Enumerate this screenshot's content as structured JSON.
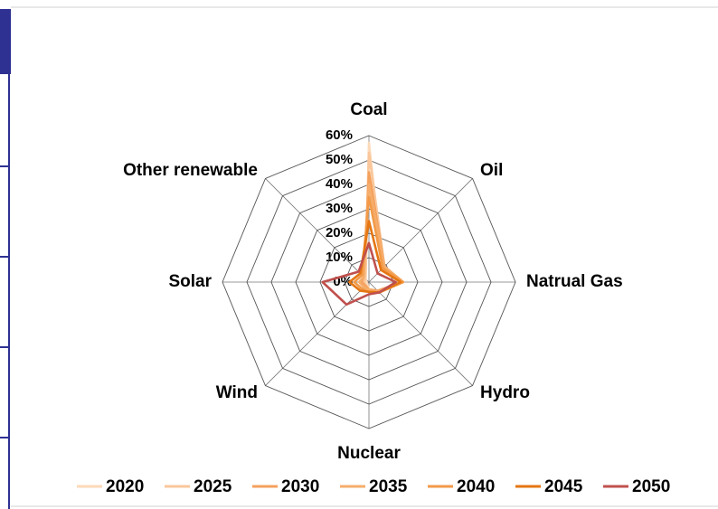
{
  "chart_data": {
    "type": "radar",
    "categories": [
      "Coal",
      "Oil",
      "Natrual Gas",
      "Hydro",
      "Nuclear",
      "Wind",
      "Solar",
      "Other renewable"
    ],
    "series": [
      {
        "name": "2020",
        "color": "#fcd9b8",
        "values": [
          57,
          8,
          13,
          5,
          3,
          1,
          1,
          2
        ]
      },
      {
        "name": "2025",
        "color": "#f9c79b",
        "values": [
          53,
          9,
          14,
          5,
          3,
          2,
          2,
          2
        ]
      },
      {
        "name": "2030",
        "color": "#f4a15d",
        "values": [
          45,
          9,
          14,
          5,
          3,
          2,
          3,
          3
        ]
      },
      {
        "name": "2035",
        "color": "#f6ad6b",
        "values": [
          40,
          9,
          14,
          6,
          3,
          3,
          4,
          3
        ]
      },
      {
        "name": "2040",
        "color": "#f29a48",
        "values": [
          35,
          8,
          14,
          6,
          4,
          4,
          6,
          4
        ]
      },
      {
        "name": "2045",
        "color": "#e57612",
        "values": [
          25,
          7,
          13,
          6,
          4,
          5,
          8,
          5
        ]
      },
      {
        "name": "2050",
        "color": "#c0504d",
        "values": [
          16,
          5,
          11,
          6,
          5,
          13,
          19,
          6
        ]
      }
    ],
    "rlim": [
      0,
      60
    ],
    "rticks": [
      {
        "value": 0,
        "label": "0%"
      },
      {
        "value": 10,
        "label": "10%"
      },
      {
        "value": 20,
        "label": "20%"
      },
      {
        "value": 30,
        "label": "30%"
      },
      {
        "value": 40,
        "label": "40%"
      },
      {
        "value": 50,
        "label": "50%"
      },
      {
        "value": 60,
        "label": "60%"
      }
    ],
    "grid": true,
    "legend": "bottom"
  }
}
